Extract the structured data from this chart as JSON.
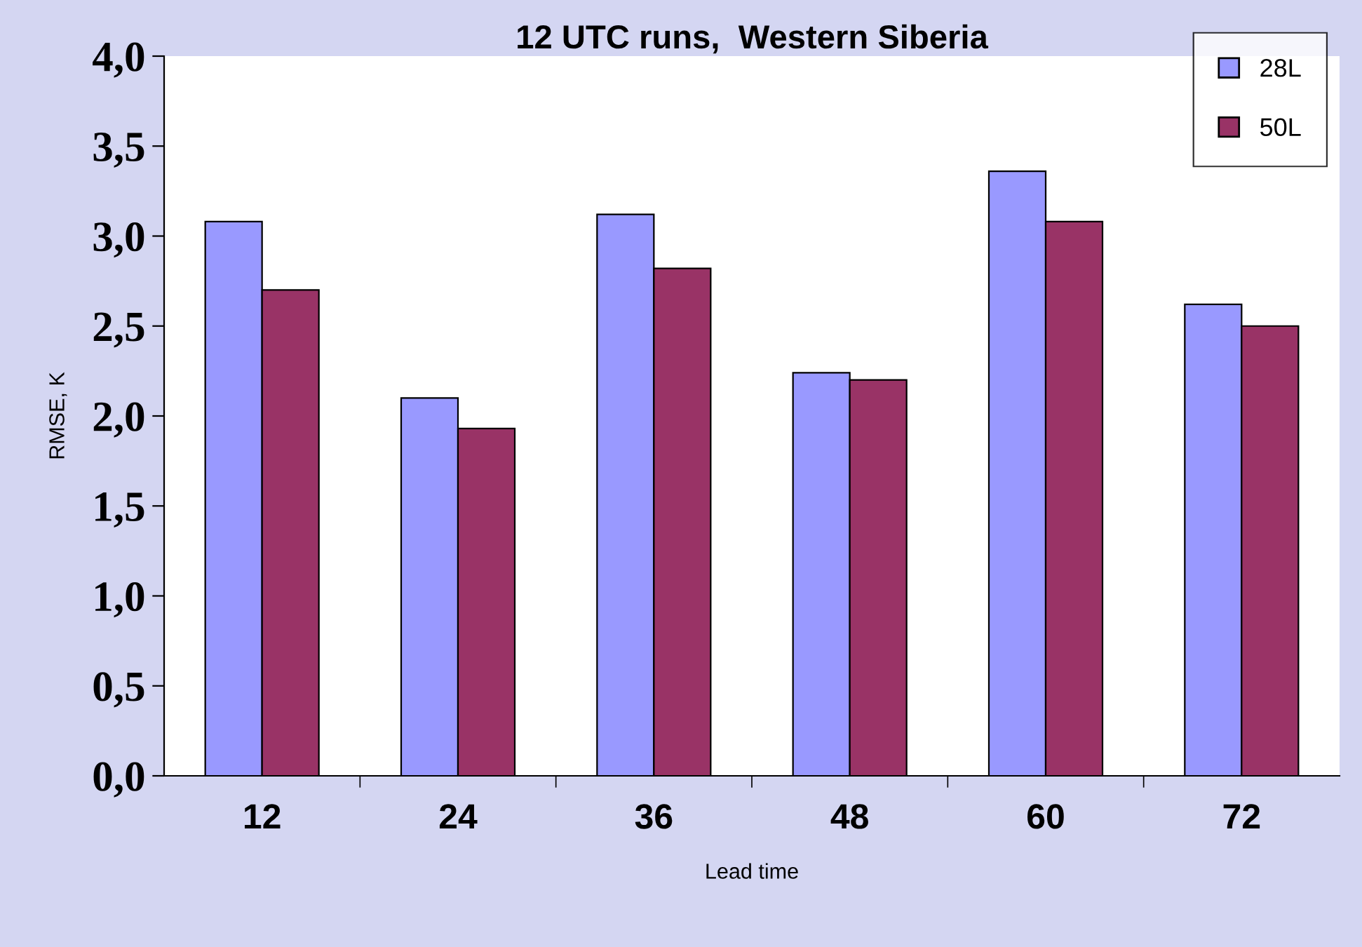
{
  "chart_data": {
    "type": "bar",
    "title": "12 UTC runs,  Western Siberia",
    "xlabel": "Lead time",
    "ylabel": "RMSE, K",
    "categories": [
      "12",
      "24",
      "36",
      "48",
      "60",
      "72"
    ],
    "series": [
      {
        "name": "28L",
        "color": "#9999ff",
        "values": [
          3.08,
          2.1,
          3.12,
          2.24,
          3.36,
          2.62
        ]
      },
      {
        "name": "50L",
        "color": "#993366",
        "values": [
          2.7,
          1.93,
          2.82,
          2.2,
          3.08,
          2.5
        ]
      }
    ],
    "ylim": [
      0,
      4
    ],
    "yticks": [
      {
        "value": 0,
        "label": "0,0"
      },
      {
        "value": 0.5,
        "label": "0,5"
      },
      {
        "value": 1,
        "label": "1,0"
      },
      {
        "value": 1.5,
        "label": "1,5"
      },
      {
        "value": 2,
        "label": "2,0"
      },
      {
        "value": 2.5,
        "label": "2,5"
      },
      {
        "value": 3,
        "label": "3,0"
      },
      {
        "value": 3.5,
        "label": "3,5"
      },
      {
        "value": 4,
        "label": "4,0"
      }
    ],
    "grid": false,
    "legend": "top right"
  }
}
